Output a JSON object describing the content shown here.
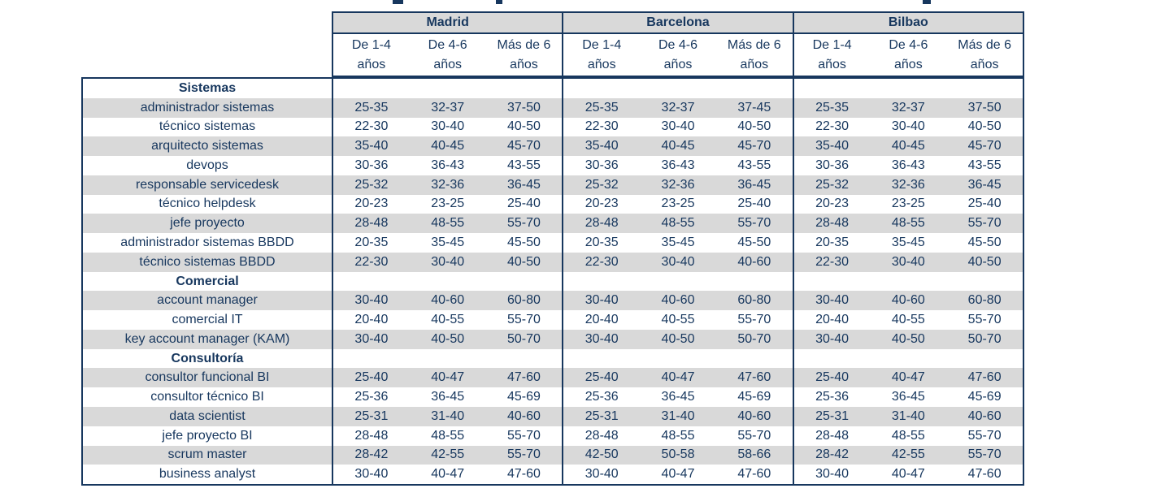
{
  "colors": {
    "text_navy": "#17375E",
    "border_navy": "#17375E",
    "stripe_gray": "#D9D9D9",
    "city_header_bg": "#D9D9D9",
    "page_bg": "#FFFFFF"
  },
  "table": {
    "cities": [
      "Madrid",
      "Barcelona",
      "Bilbao"
    ],
    "experience": [
      {
        "l1": "De 1-4",
        "l2": "años"
      },
      {
        "l1": "De 4-6",
        "l2": "años"
      },
      {
        "l1": "Más de 6",
        "l2": "años"
      }
    ],
    "sections": [
      {
        "name": "Sistemas",
        "rows": [
          {
            "label": "administrador sistemas",
            "values": [
              "25-35",
              "32-37",
              "37-50",
              "25-35",
              "32-37",
              "37-45",
              "25-35",
              "32-37",
              "37-50"
            ]
          },
          {
            "label": "técnico sistemas",
            "values": [
              "22-30",
              "30-40",
              "40-50",
              "22-30",
              "30-40",
              "40-50",
              "22-30",
              "30-40",
              "40-50"
            ]
          },
          {
            "label": "arquitecto sistemas",
            "values": [
              "35-40",
              "40-45",
              "45-70",
              "35-40",
              "40-45",
              "45-70",
              "35-40",
              "40-45",
              "45-70"
            ]
          },
          {
            "label": "devops",
            "values": [
              "30-36",
              "36-43",
              "43-55",
              "30-36",
              "36-43",
              "43-55",
              "30-36",
              "36-43",
              "43-55"
            ]
          },
          {
            "label": "responsable servicedesk",
            "values": [
              "25-32",
              "32-36",
              "36-45",
              "25-32",
              "32-36",
              "36-45",
              "25-32",
              "32-36",
              "36-45"
            ]
          },
          {
            "label": "técnico helpdesk",
            "values": [
              "20-23",
              "23-25",
              "25-40",
              "20-23",
              "23-25",
              "25-40",
              "20-23",
              "23-25",
              "25-40"
            ]
          },
          {
            "label": "jefe proyecto",
            "values": [
              "28-48",
              "48-55",
              "55-70",
              "28-48",
              "48-55",
              "55-70",
              "28-48",
              "48-55",
              "55-70"
            ]
          },
          {
            "label": "administrador sistemas BBDD",
            "values": [
              "20-35",
              "35-45",
              "45-50",
              "20-35",
              "35-45",
              "45-50",
              "20-35",
              "35-45",
              "45-50"
            ]
          },
          {
            "label": "técnico sistemas BBDD",
            "values": [
              "22-30",
              "30-40",
              "40-50",
              "22-30",
              "30-40",
              "40-60",
              "22-30",
              "30-40",
              "40-50"
            ]
          }
        ]
      },
      {
        "name": "Comercial",
        "rows": [
          {
            "label": "account manager",
            "values": [
              "30-40",
              "40-60",
              "60-80",
              "30-40",
              "40-60",
              "60-80",
              "30-40",
              "40-60",
              "60-80"
            ]
          },
          {
            "label": "comercial IT",
            "values": [
              "20-40",
              "40-55",
              "55-70",
              "20-40",
              "40-55",
              "55-70",
              "20-40",
              "40-55",
              "55-70"
            ]
          },
          {
            "label": "key account manager (KAM)",
            "values": [
              "30-40",
              "40-50",
              "50-70",
              "30-40",
              "40-50",
              "50-70",
              "30-40",
              "40-50",
              "50-70"
            ]
          }
        ]
      },
      {
        "name": "Consultoría",
        "rows": [
          {
            "label": "consultor funcional BI",
            "values": [
              "25-40",
              "40-47",
              "47-60",
              "25-40",
              "40-47",
              "47-60",
              "25-40",
              "40-47",
              "47-60"
            ]
          },
          {
            "label": "consultor técnico BI",
            "values": [
              "25-36",
              "36-45",
              "45-69",
              "25-36",
              "36-45",
              "45-69",
              "25-36",
              "36-45",
              "45-69"
            ]
          },
          {
            "label": "data scientist",
            "values": [
              "25-31",
              "31-40",
              "40-60",
              "25-31",
              "31-40",
              "40-60",
              "25-31",
              "31-40",
              "40-60"
            ]
          },
          {
            "label": "jefe proyecto BI",
            "values": [
              "28-48",
              "48-55",
              "55-70",
              "28-48",
              "48-55",
              "55-70",
              "28-48",
              "48-55",
              "55-70"
            ]
          },
          {
            "label": "scrum master",
            "values": [
              "28-42",
              "42-55",
              "55-70",
              "42-50",
              "50-58",
              "58-66",
              "28-42",
              "42-55",
              "55-70"
            ]
          },
          {
            "label": "business analyst",
            "values": [
              "30-40",
              "40-47",
              "47-60",
              "30-40",
              "40-47",
              "47-60",
              "30-40",
              "40-47",
              "47-60"
            ]
          }
        ]
      }
    ]
  }
}
